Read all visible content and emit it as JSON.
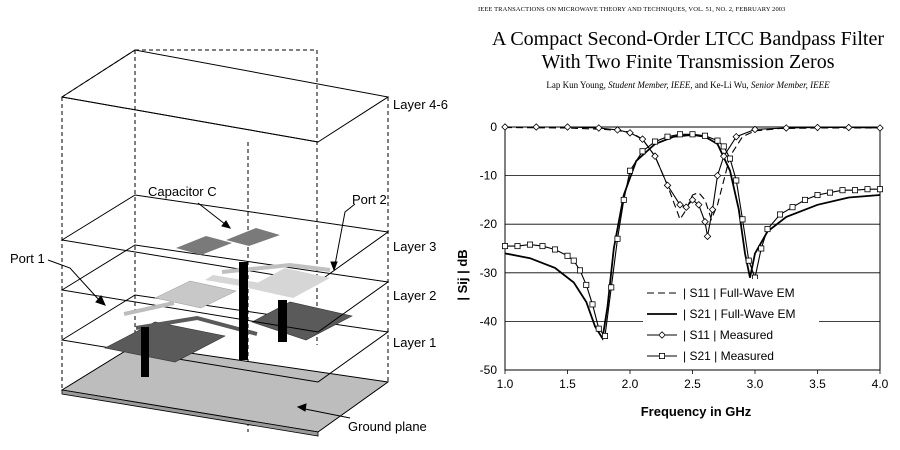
{
  "figure_labels": {
    "layer_4_6": "Layer 4-6",
    "capacitor": "Capacitor C",
    "port2": "Port 2",
    "port1": "Port 1",
    "layer3": "Layer 3",
    "layer2": "Layer 2",
    "layer1": "Layer 1",
    "ground": "Ground plane"
  },
  "header": {
    "journal": "IEEE TRANSACTIONS ON MICROWAVE THEORY AND TECHNIQUES, VOL. 51, NO. 2, FEBRUARY 2003",
    "title_line1": "A Compact Second-Order LTCC Bandpass Filter",
    "title_line2": "With Two Finite Transmission Zeros",
    "author1": "Lap Kun Young,",
    "author1_role": "Student Member, IEEE,",
    "and": "and",
    "author2": "Ke-Li Wu,",
    "author2_role": "Senior Member, IEEE"
  },
  "chart_data": {
    "type": "line",
    "xlabel": "Frequency in GHz",
    "ylabel": "| Sij | dB",
    "xlim": [
      1.0,
      4.0
    ],
    "ylim": [
      -50,
      0
    ],
    "xticks": [
      "1.0",
      "1.5",
      "2.0",
      "2.5",
      "3.0",
      "3.5",
      "4.0"
    ],
    "yticks": [
      "0",
      "-10",
      "-20",
      "-30",
      "-40",
      "-50"
    ],
    "grid": "horizontal",
    "legend_position": "bottom-right",
    "series": [
      {
        "name": "| S11 | Full-Wave EM",
        "style": "dashed",
        "x": [
          1.0,
          1.5,
          1.8,
          2.0,
          2.1,
          2.2,
          2.3,
          2.4,
          2.45,
          2.5,
          2.55,
          2.6,
          2.65,
          2.7,
          2.8,
          2.9,
          3.0,
          3.2,
          3.5,
          4.0
        ],
        "y": [
          -0.1,
          -0.2,
          -0.5,
          -1.0,
          -2.5,
          -6.0,
          -12.0,
          -19.0,
          -17.0,
          -14.0,
          -13.5,
          -15.0,
          -19.0,
          -16.0,
          -6.0,
          -2.0,
          -0.8,
          -0.3,
          -0.2,
          -0.2
        ]
      },
      {
        "name": "| S21 | Full-Wave EM",
        "style": "solid",
        "x": [
          1.0,
          1.2,
          1.4,
          1.55,
          1.65,
          1.72,
          1.78,
          1.82,
          1.87,
          1.95,
          2.05,
          2.2,
          2.35,
          2.5,
          2.6,
          2.7,
          2.8,
          2.87,
          2.92,
          2.96,
          3.0,
          3.1,
          3.25,
          3.5,
          3.75,
          4.0
        ],
        "y": [
          -26.0,
          -27.0,
          -29.0,
          -32.0,
          -36.0,
          -41.0,
          -43.5,
          -37.0,
          -25.0,
          -14.0,
          -7.0,
          -3.5,
          -2.0,
          -1.6,
          -2.0,
          -3.5,
          -9.0,
          -17.0,
          -26.0,
          -31.0,
          -26.0,
          -21.5,
          -18.5,
          -16.0,
          -14.5,
          -14.0
        ]
      },
      {
        "name": "| S11 | Measured",
        "style": "diamond",
        "x": [
          1.0,
          1.25,
          1.5,
          1.75,
          1.9,
          2.0,
          2.1,
          2.2,
          2.3,
          2.4,
          2.45,
          2.5,
          2.55,
          2.6,
          2.62,
          2.66,
          2.7,
          2.75,
          2.85,
          3.0,
          3.25,
          3.5,
          3.75,
          4.0
        ],
        "y": [
          0.0,
          0.0,
          0.0,
          -0.2,
          -0.6,
          -1.2,
          -2.5,
          -6.0,
          -12.0,
          -16.0,
          -16.5,
          -15.0,
          -16.0,
          -19.5,
          -22.5,
          -17.0,
          -10.0,
          -6.0,
          -2.0,
          -0.5,
          -0.2,
          -0.1,
          -0.1,
          -0.2
        ]
      },
      {
        "name": "| S21 | Measured",
        "style": "square",
        "x": [
          1.0,
          1.1,
          1.2,
          1.3,
          1.4,
          1.5,
          1.55,
          1.6,
          1.65,
          1.7,
          1.75,
          1.8,
          1.85,
          1.9,
          1.95,
          2.0,
          2.1,
          2.2,
          2.3,
          2.4,
          2.5,
          2.6,
          2.7,
          2.75,
          2.8,
          2.85,
          2.9,
          2.95,
          3.0,
          3.05,
          3.1,
          3.2,
          3.3,
          3.4,
          3.5,
          3.6,
          3.7,
          3.8,
          3.9,
          4.0
        ],
        "y": [
          -24.5,
          -24.5,
          -24.2,
          -24.5,
          -25.2,
          -26.5,
          -27.5,
          -29.5,
          -32.5,
          -36.5,
          -41.5,
          -43.0,
          -33.0,
          -23.0,
          -15.0,
          -9.0,
          -5.0,
          -3.0,
          -2.0,
          -1.5,
          -1.5,
          -1.8,
          -2.8,
          -4.0,
          -6.5,
          -11.0,
          -19.0,
          -27.5,
          -31.0,
          -25.0,
          -21.0,
          -18.0,
          -16.5,
          -15.0,
          -14.0,
          -13.5,
          -13.0,
          -13.0,
          -12.8,
          -12.8
        ]
      }
    ]
  }
}
